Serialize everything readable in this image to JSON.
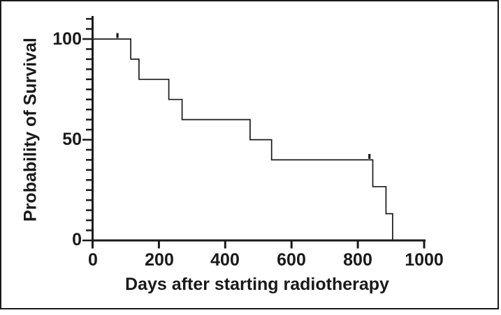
{
  "figure": {
    "background_color": "#ffffff",
    "frame_border_color": "#1a1a1a",
    "line_color": "#1a1a1a"
  },
  "chart_data": {
    "type": "line",
    "subtype": "kaplan-meier-step-curve",
    "title": "",
    "xlabel": "Days after starting radiotherapy",
    "ylabel": "Probability of Survival",
    "xlim": [
      0,
      1000
    ],
    "ylim": [
      0,
      110
    ],
    "grid": false,
    "legend": null,
    "x_tick_values": [
      0,
      200,
      400,
      600,
      800,
      1000
    ],
    "x_tick_labels": [
      "0",
      "200",
      "400",
      "600",
      "800",
      "1000"
    ],
    "y_tick_values": [
      100,
      50,
      0
    ],
    "y_tick_labels": [
      "100",
      "50",
      "0"
    ],
    "y_minor_tick_step": 5,
    "series": [
      {
        "name": "survival",
        "step_points_day_percent": [
          [
            0,
            100
          ],
          [
            115,
            100
          ],
          [
            115,
            90
          ],
          [
            140,
            90
          ],
          [
            140,
            80
          ],
          [
            230,
            80
          ],
          [
            230,
            70
          ],
          [
            270,
            70
          ],
          [
            270,
            60
          ],
          [
            475,
            60
          ],
          [
            475,
            50
          ],
          [
            540,
            50
          ],
          [
            540,
            40
          ],
          [
            845,
            40
          ],
          [
            845,
            26.7
          ],
          [
            885,
            26.7
          ],
          [
            885,
            13.3
          ],
          [
            905,
            13.3
          ],
          [
            905,
            0
          ]
        ],
        "censor_marks_day_percent": [
          [
            75,
            100
          ],
          [
            835,
            40
          ]
        ]
      }
    ]
  }
}
